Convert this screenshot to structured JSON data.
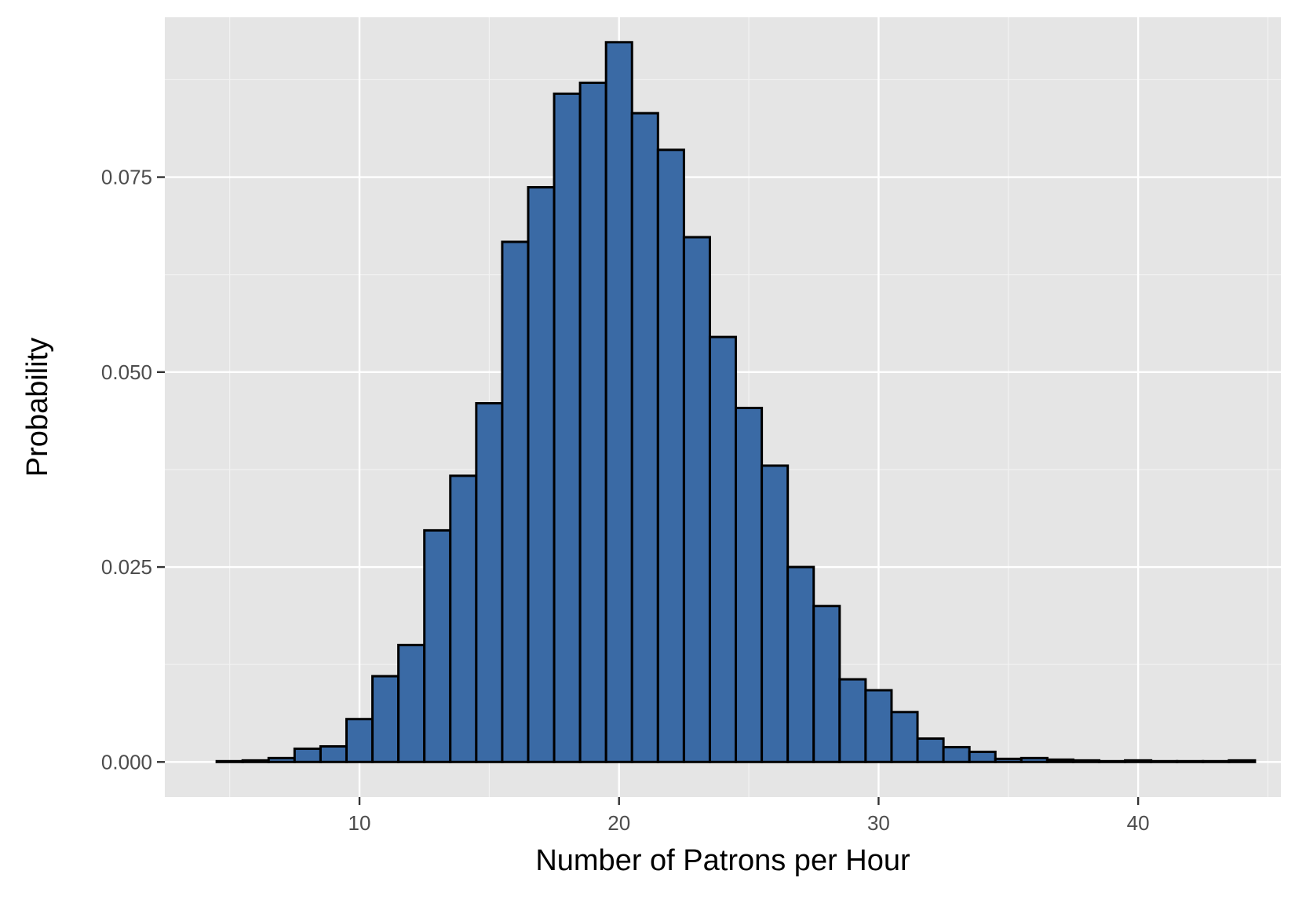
{
  "chart_data": {
    "type": "bar",
    "xlabel": "Number of Patrons per Hour",
    "ylabel": "Probability",
    "xlim": [
      2.5,
      45.5
    ],
    "ylim": [
      -0.0045,
      0.0955
    ],
    "x_ticks": [
      10,
      20,
      30,
      40
    ],
    "x_tick_labels": [
      "10",
      "20",
      "30",
      "40"
    ],
    "y_ticks": [
      0,
      0.025,
      0.05,
      0.075
    ],
    "y_tick_labels": [
      "0.000",
      "0.025",
      "0.050",
      "0.075"
    ],
    "grid": true,
    "bin_width": 1,
    "bins": [
      5,
      6,
      7,
      8,
      9,
      10,
      11,
      12,
      13,
      14,
      15,
      16,
      17,
      18,
      19,
      20,
      21,
      22,
      23,
      24,
      25,
      26,
      27,
      28,
      29,
      30,
      31,
      32,
      33,
      34,
      35,
      36,
      37,
      38,
      39,
      40,
      41,
      42,
      43,
      44
    ],
    "values": [
      0.0001,
      0.0002,
      0.0005,
      0.0017,
      0.002,
      0.0055,
      0.011,
      0.015,
      0.0297,
      0.0367,
      0.046,
      0.0667,
      0.0737,
      0.0857,
      0.0871,
      0.0923,
      0.0832,
      0.0785,
      0.0673,
      0.0545,
      0.0454,
      0.038,
      0.025,
      0.02,
      0.0106,
      0.0092,
      0.0064,
      0.003,
      0.0019,
      0.0013,
      0.0004,
      0.0005,
      0.0003,
      0.0002,
      0.0001,
      0.0002,
      0.0001,
      0.0001,
      0.0001,
      0.0002
    ],
    "colors": {
      "bar_fill": "#3a6aa5",
      "bar_stroke": "#000000",
      "panel_background": "#e5e5e5",
      "grid_major": "#ffffff",
      "grid_minor": "#f2f2f2"
    }
  }
}
